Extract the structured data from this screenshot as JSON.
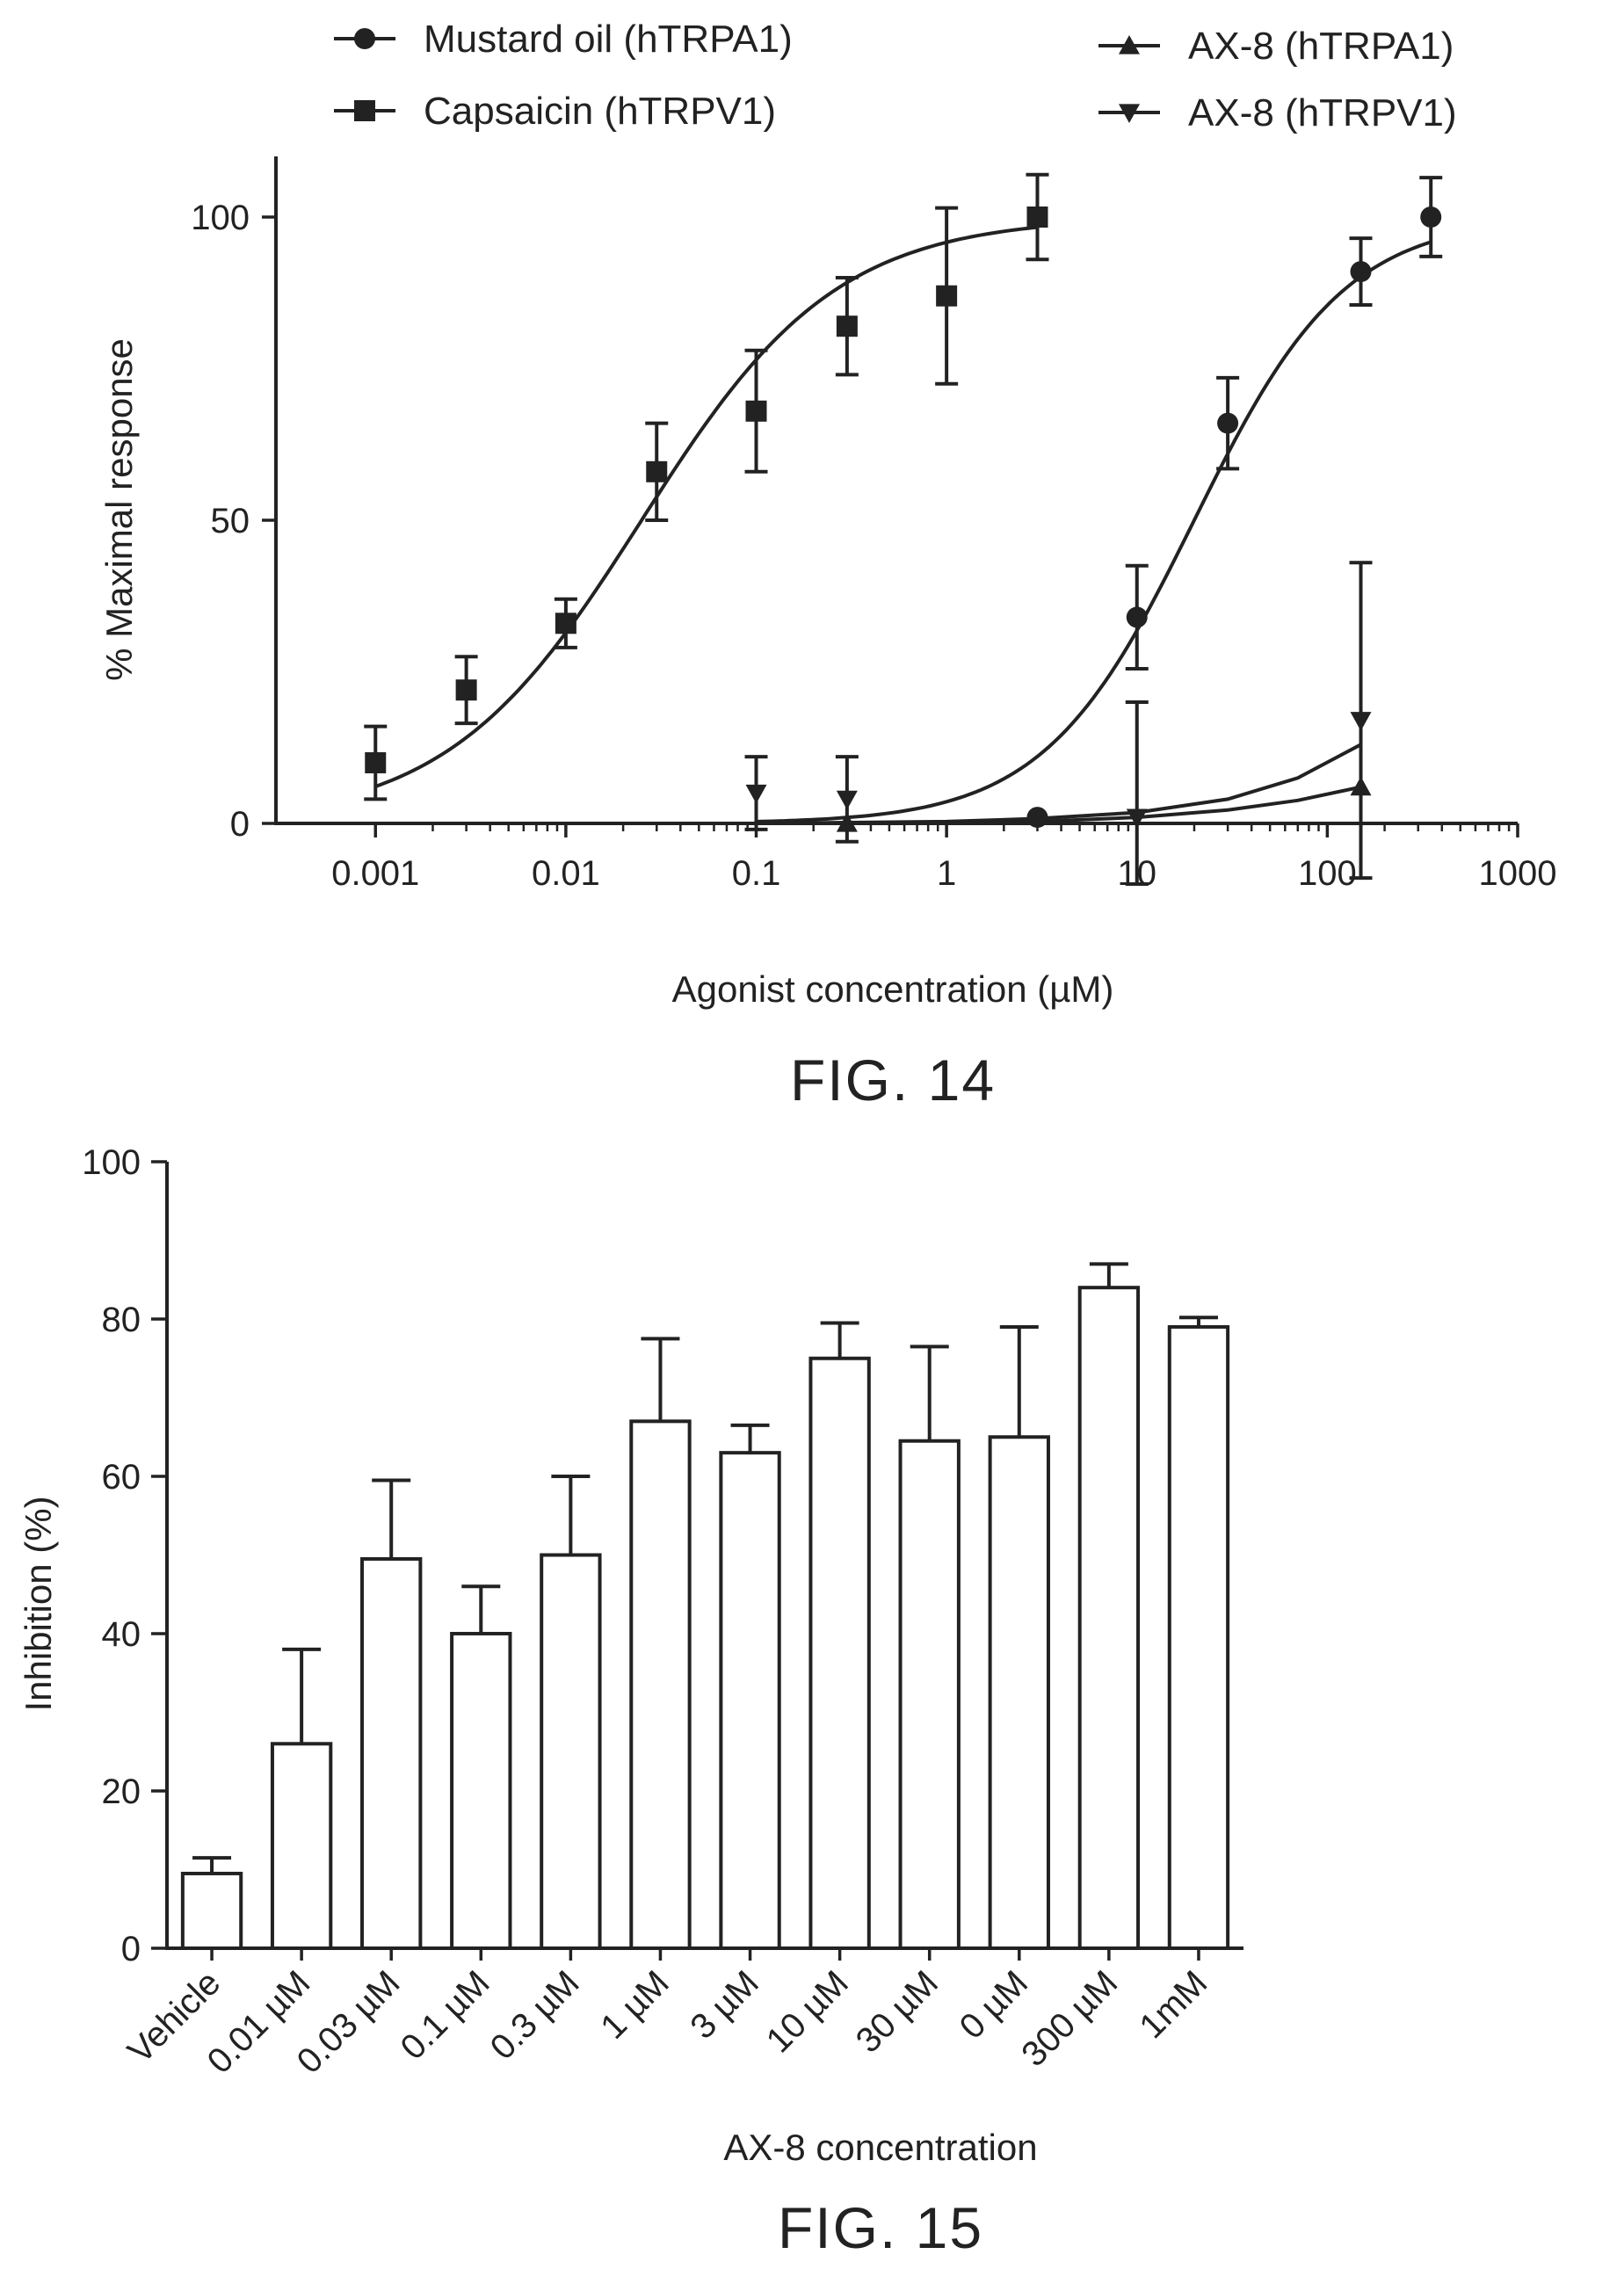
{
  "figures": {
    "fig14_caption": "FIG. 14",
    "fig15_caption": "FIG. 15"
  },
  "chart_data": [
    {
      "type": "scatter",
      "xscale": "log",
      "xlabel": "Agonist concentration (µM)",
      "ylabel": "% Maximal response",
      "xlim": [
        0.0003,
        1000
      ],
      "ylim": [
        0,
        110
      ],
      "xticks": [
        {
          "value": 0.001,
          "label": "0.001"
        },
        {
          "value": 0.01,
          "label": "0.01"
        },
        {
          "value": 0.1,
          "label": "0.1"
        },
        {
          "value": 1,
          "label": "1"
        },
        {
          "value": 10,
          "label": "10"
        },
        {
          "value": 100,
          "label": "100"
        },
        {
          "value": 1000,
          "label": "1000"
        }
      ],
      "yticks": [
        {
          "value": 0,
          "label": "0"
        },
        {
          "value": 50,
          "label": "50"
        },
        {
          "value": 100,
          "label": "100"
        }
      ],
      "grid": false,
      "legend_position": "top",
      "series": [
        {
          "name": "Mustard oil (hTRPA1)",
          "marker": "circle",
          "points": [
            {
              "x": 3,
              "y": 1,
              "err": 0
            },
            {
              "x": 10,
              "y": 34,
              "err": 8.5
            },
            {
              "x": 30,
              "y": 66,
              "err": 7.5
            },
            {
              "x": 150,
              "y": 91,
              "err": 5.5
            },
            {
              "x": 350,
              "y": 100,
              "err": 6.5
            }
          ],
          "fit": {
            "bottom": 0,
            "top": 100,
            "ec50": 20,
            "hill": 1.1,
            "from": 0.1,
            "to": 350
          }
        },
        {
          "name": "Capsaicin (hTRPV1)",
          "marker": "square",
          "points": [
            {
              "x": 0.001,
              "y": 10,
              "err": 6
            },
            {
              "x": 0.003,
              "y": 22,
              "err": 5.5
            },
            {
              "x": 0.01,
              "y": 33,
              "err": 4
            },
            {
              "x": 0.03,
              "y": 58,
              "err": 8
            },
            {
              "x": 0.1,
              "y": 68,
              "err": 10
            },
            {
              "x": 0.3,
              "y": 82,
              "err": 8
            },
            {
              "x": 1,
              "y": 87,
              "err": 14.5
            },
            {
              "x": 3,
              "y": 100,
              "err": 7
            }
          ],
          "fit": {
            "bottom": 0,
            "top": 100,
            "ec50": 0.025,
            "hill": 0.85,
            "from": 0.001,
            "to": 3
          }
        },
        {
          "name": "AX-8  (hTRPA1)",
          "marker": "triangle-up",
          "points": [
            {
              "x": 0.3,
              "y": 0,
              "err": 0
            },
            {
              "x": 150,
              "y": 6,
              "err": 0
            }
          ],
          "fit_points": [
            [
              0.3,
              0
            ],
            [
              3,
              0.3
            ],
            [
              10,
              1
            ],
            [
              30,
              2.2
            ],
            [
              70,
              3.8
            ],
            [
              150,
              6
            ]
          ]
        },
        {
          "name": "AX-8  (hTRPV1)",
          "marker": "triangle-down",
          "points": [
            {
              "x": 0.1,
              "y": 5,
              "err": 6
            },
            {
              "x": 0.3,
              "y": 4,
              "err": 7
            },
            {
              "x": 10,
              "y": 1,
              "err": 19
            },
            {
              "x": 150,
              "y": 17,
              "err": 26
            }
          ],
          "fit_points": [
            [
              0.1,
              0
            ],
            [
              1,
              0.3
            ],
            [
              3,
              0.8
            ],
            [
              10,
              1.8
            ],
            [
              30,
              4
            ],
            [
              70,
              7.5
            ],
            [
              150,
              13
            ]
          ]
        }
      ]
    },
    {
      "type": "bar",
      "xlabel": "AX-8 concentration",
      "ylabel": "Inhibition (%)",
      "ylim": [
        0,
        100
      ],
      "yticks": [
        0,
        20,
        40,
        60,
        80,
        100
      ],
      "grid": false,
      "categories": [
        "Vehicle",
        "0.01 µM",
        "0.03 µM",
        "0.1 µM",
        "0.3 µM",
        "1 µM",
        "3 µM",
        "10 µM",
        "30 µM",
        "0 µM",
        "300 µM",
        "1mM"
      ],
      "values": [
        9.5,
        26,
        49.5,
        40,
        50,
        67,
        63,
        75,
        64.5,
        65,
        84,
        79
      ],
      "errors": [
        2,
        12,
        10,
        6,
        10,
        10.5,
        3.5,
        4.5,
        12,
        14,
        3,
        1.2
      ]
    }
  ]
}
